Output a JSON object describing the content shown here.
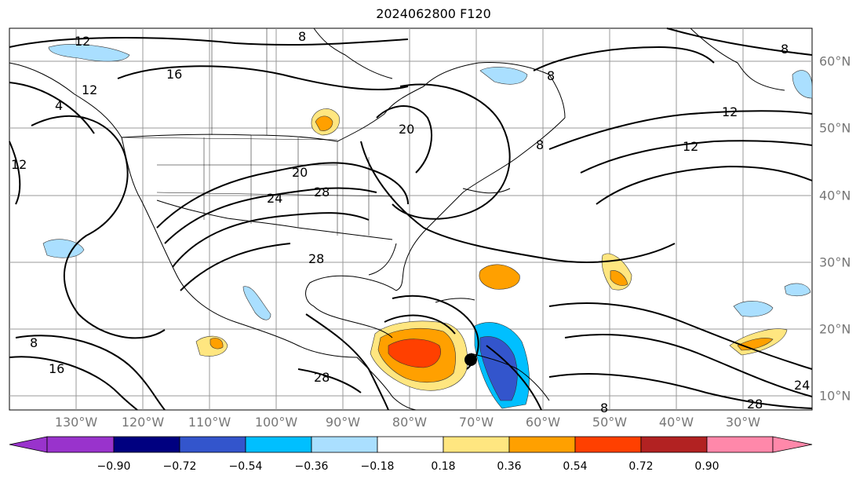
{
  "title": "2024062800 F120",
  "longitude_labels": [
    "130°W",
    "120°W",
    "110°W",
    "100°W",
    "90°W",
    "80°W",
    "70°W",
    "60°W",
    "50°W",
    "40°W",
    "30°W"
  ],
  "latitude_labels": [
    "60°N",
    "50°N",
    "40°N",
    "30°N",
    "20°N",
    "10°N"
  ],
  "contour_labels": [
    "12",
    "8",
    "16",
    "12",
    "4",
    "12",
    "20",
    "20",
    "24",
    "28",
    "28",
    "8",
    "12",
    "12",
    "8",
    "8",
    "8",
    "8",
    "16",
    "28",
    "28",
    "24"
  ],
  "storm_marker": "tropical-cyclone-center",
  "colorbar": {
    "ticks": [
      "−0.90",
      "−0.72",
      "−0.54",
      "−0.36",
      "−0.18",
      "0.18",
      "0.36",
      "0.54",
      "0.72",
      "0.90"
    ],
    "colors": [
      "#9933cc",
      "#000080",
      "#3355cc",
      "#00bfff",
      "#aadfff",
      "#ffffff",
      "#ffe680",
      "#ffa000",
      "#ff4000",
      "#b22222",
      "#ff88aa"
    ],
    "under_color": "#9933cc",
    "over_color": "#ff88aa"
  },
  "colors": {
    "frame": "#000000",
    "grid": "#999999",
    "axis_label": "#777777"
  }
}
